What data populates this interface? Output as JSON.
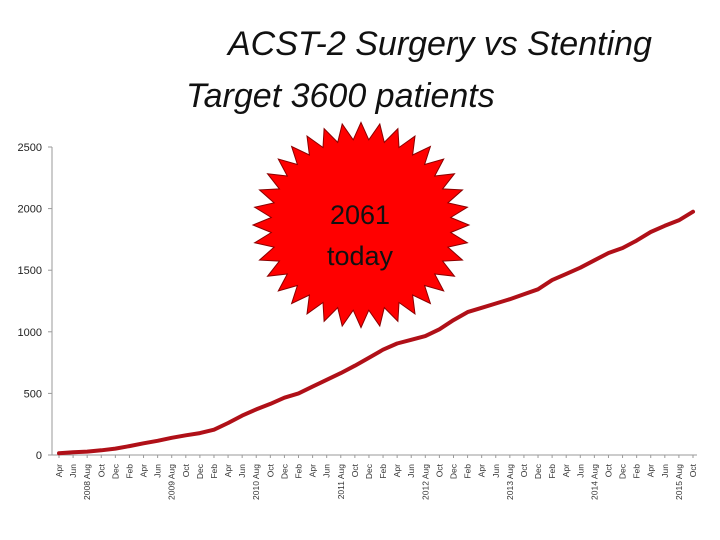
{
  "title": {
    "line1": "ACST-2 Surgery vs Stenting",
    "line2": "Target 3600 patients"
  },
  "callout": {
    "line1": "2061",
    "line2": "today"
  },
  "colors": {
    "series": "#b01018",
    "starburst": "#ff0000",
    "starburst_stroke": "#8a0000"
  },
  "chart_data": {
    "type": "line",
    "title": "ACST-2 Surgery vs Stenting Target 3600 patients",
    "xlabel": "",
    "ylabel": "",
    "ylim": [
      0,
      2500
    ],
    "yticks": [
      0,
      500,
      1000,
      1500,
      2000,
      2500
    ],
    "grid": false,
    "x_tick_labels": [
      "Apr",
      "Jun",
      "2008 Aug",
      "Oct",
      "Dec",
      "Feb",
      "Apr",
      "Jun",
      "2009 Aug",
      "Oct",
      "Dec",
      "Feb",
      "Apr",
      "Jun",
      "2010 Aug",
      "Oct",
      "Dec",
      "Feb",
      "Apr",
      "Jun",
      "2011 Aug",
      "Oct",
      "Dec",
      "Feb",
      "Apr",
      "Jun",
      "2012 Aug",
      "Oct",
      "Dec",
      "Feb",
      "Apr",
      "Jun",
      "2013 Aug",
      "Oct",
      "Dec",
      "Feb",
      "Apr",
      "Jun",
      "2014 Aug",
      "Oct",
      "Dec",
      "Feb",
      "Apr",
      "Jun",
      "2015 Aug",
      "Oct"
    ],
    "series": [
      {
        "values": [
          15,
          22,
          28,
          38,
          52,
          72,
          95,
          115,
          140,
          160,
          178,
          205,
          260,
          320,
          370,
          415,
          465,
          500,
          555,
          610,
          665,
          725,
          790,
          855,
          905,
          935,
          965,
          1020,
          1095,
          1160,
          1195,
          1230,
          1265,
          1305,
          1345,
          1420,
          1470,
          1520,
          1580,
          1640,
          1680,
          1740,
          1810,
          1860,
          1905,
          1975
        ]
      }
    ]
  }
}
